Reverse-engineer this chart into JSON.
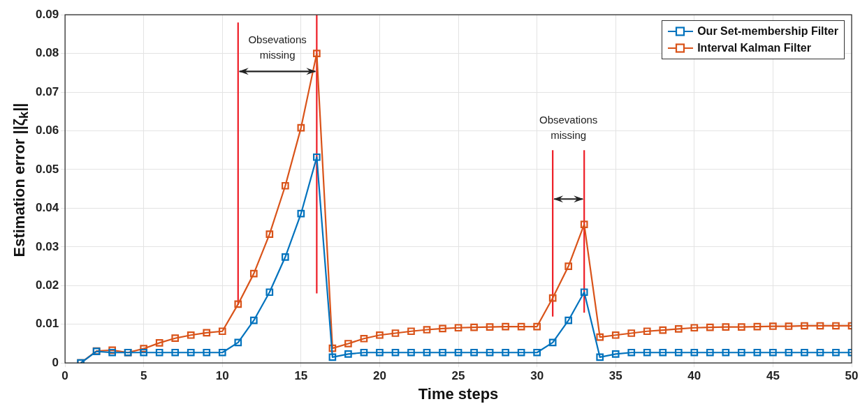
{
  "chart_data": {
    "type": "line",
    "xlabel": "Time steps",
    "ylabel": "Estimation error ||ζ$_{k}$||",
    "x": [
      1,
      2,
      3,
      4,
      5,
      6,
      7,
      8,
      9,
      10,
      11,
      12,
      13,
      14,
      15,
      16,
      17,
      18,
      19,
      20,
      21,
      22,
      23,
      24,
      25,
      26,
      27,
      28,
      29,
      30,
      31,
      32,
      33,
      34,
      35,
      36,
      37,
      38,
      39,
      40,
      41,
      42,
      43,
      44,
      45,
      46,
      47,
      48,
      49,
      50
    ],
    "series": [
      {
        "name": "Our Set-membership Filter",
        "color": "#0072bd",
        "marker": "square",
        "values": [
          0,
          0.003,
          0.0027,
          0.0027,
          0.0027,
          0.0027,
          0.0027,
          0.0027,
          0.0027,
          0.0027,
          0.0053,
          0.011,
          0.0183,
          0.0274,
          0.0386,
          0.0532,
          0.0015,
          0.0023,
          0.0027,
          0.0027,
          0.0027,
          0.0027,
          0.0027,
          0.0027,
          0.0027,
          0.0027,
          0.0027,
          0.0027,
          0.0027,
          0.0027,
          0.0053,
          0.011,
          0.0183,
          0.0015,
          0.0023,
          0.0027,
          0.0027,
          0.0027,
          0.0027,
          0.0027,
          0.0027,
          0.0027,
          0.0027,
          0.0027,
          0.0027,
          0.0027,
          0.0027,
          0.0027,
          0.0027,
          0.0027
        ]
      },
      {
        "name": "Interval Kalman Filter",
        "color": "#d95319",
        "marker": "square",
        "values": [
          0,
          0.0031,
          0.0033,
          0.0027,
          0.0037,
          0.0052,
          0.0064,
          0.0072,
          0.0078,
          0.0082,
          0.0152,
          0.0231,
          0.0333,
          0.0458,
          0.0608,
          0.08,
          0.0038,
          0.005,
          0.0063,
          0.0072,
          0.0077,
          0.0082,
          0.0086,
          0.0089,
          0.0091,
          0.0092,
          0.0093,
          0.0094,
          0.0094,
          0.0094,
          0.0168,
          0.025,
          0.0358,
          0.0067,
          0.0072,
          0.0077,
          0.0082,
          0.0085,
          0.0088,
          0.0091,
          0.0092,
          0.0093,
          0.0093,
          0.0094,
          0.0095,
          0.0095,
          0.0096,
          0.0096,
          0.0096,
          0.0096
        ]
      },
      {
        "color": "#ee1c25",
        "marker": "none",
        "x": [
          11,
          11
        ],
        "values": [
          0.015,
          0.088
        ]
      },
      {
        "color": "#ee1c25",
        "marker": "none",
        "x": [
          16,
          16
        ],
        "values": [
          0.018,
          0.09
        ]
      },
      {
        "color": "#ee1c25",
        "marker": "none",
        "x": [
          31,
          31
        ],
        "values": [
          0.012,
          0.055
        ]
      },
      {
        "color": "#ee1c25",
        "marker": "none",
        "x": [
          33,
          33
        ],
        "values": [
          0.013,
          0.055
        ]
      }
    ],
    "annotations": [
      "Obsevations missing",
      "Obsevations missing"
    ],
    "xlim": [
      0,
      50
    ],
    "xticks": [
      0,
      5,
      10,
      15,
      20,
      25,
      30,
      35,
      40,
      45,
      50
    ],
    "ylim": [
      0,
      0.09
    ],
    "yticks": [
      0,
      0.01,
      0.02,
      0.03,
      0.04,
      0.05,
      0.06,
      0.07,
      0.08,
      0.09
    ],
    "grid": true,
    "legend": "top right"
  }
}
